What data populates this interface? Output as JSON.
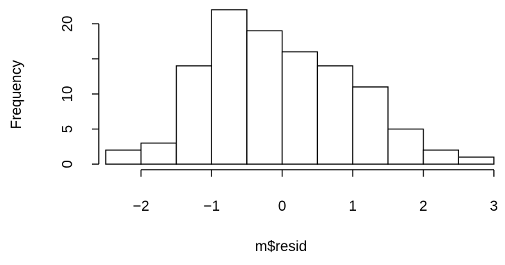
{
  "chart_data": {
    "type": "bar",
    "title": "",
    "xlabel": "m$resid",
    "ylabel": "Frequency",
    "bin_edges": [
      -2.5,
      -2,
      -1.5,
      -1,
      -0.5,
      0,
      0.5,
      1,
      1.5,
      2,
      2.5,
      3
    ],
    "values": [
      2,
      3,
      14,
      22,
      19,
      16,
      14,
      11,
      5,
      2,
      1
    ],
    "xlim": [
      -2.5,
      3
    ],
    "ylim": [
      0,
      22
    ],
    "x_ticks": [
      -2,
      -1,
      0,
      1,
      2,
      3
    ],
    "x_tick_labels": [
      "−2",
      "−1",
      "0",
      "1",
      "2",
      "3"
    ],
    "y_ticks": [
      0,
      5,
      10,
      15,
      20
    ],
    "y_tick_labels": [
      "0",
      "5",
      "10",
      "",
      "20"
    ],
    "grid": false,
    "colors": {
      "bar_fill": "#ffffff",
      "bar_stroke": "#000000",
      "axis": "#000000"
    }
  }
}
